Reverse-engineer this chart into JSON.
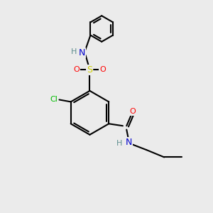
{
  "background_color": "#ebebeb",
  "atom_colors": {
    "C": "#000000",
    "N": "#0000cc",
    "O": "#ff0000",
    "S": "#cccc00",
    "Cl": "#00bb00",
    "H": "#5f8f8f"
  },
  "bond_color": "#000000",
  "bond_width": 1.5
}
